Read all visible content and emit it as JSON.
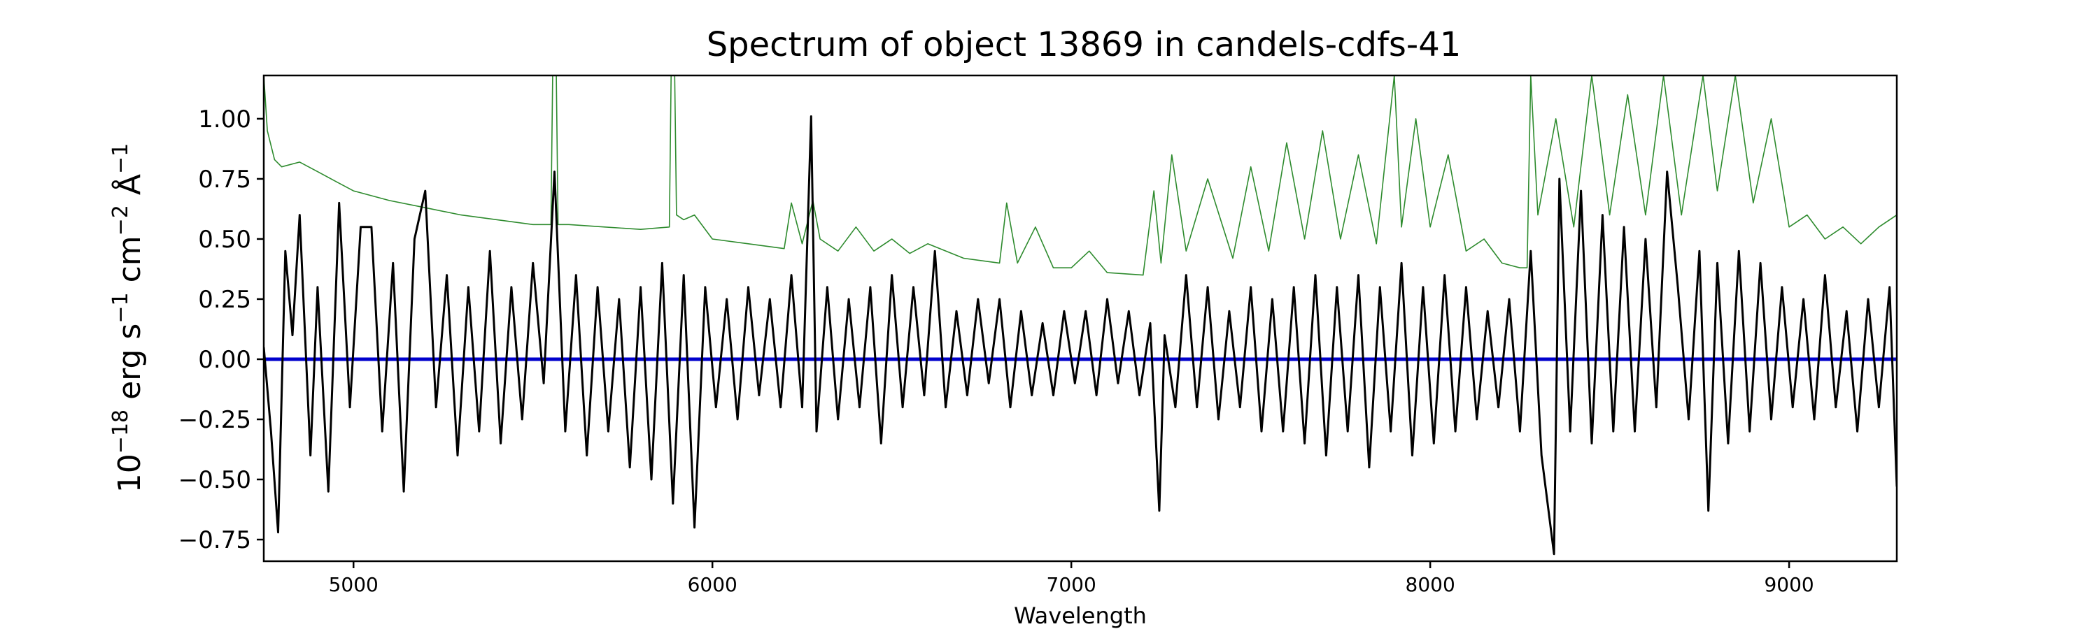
{
  "chart_data": {
    "type": "line",
    "title": "Spectrum of object 13869 in candels-cdfs-41",
    "xlabel": "Wavelength",
    "ylabel": {
      "prefix": "10",
      "exp_prefix": "−18",
      "unit_erg": " erg s",
      "exp_s": "−1",
      "unit_cm": " cm",
      "exp_cm": "−2",
      "unit_ang": " Å",
      "exp_ang": "−1"
    },
    "xlim": [
      4750,
      9300
    ],
    "ylim": [
      -0.84,
      1.18
    ],
    "xticks": [
      5000,
      6000,
      7000,
      8000,
      9000
    ],
    "xtick_labels": [
      "5000",
      "6000",
      "7000",
      "8000",
      "9000"
    ],
    "yticks": [
      -0.75,
      -0.5,
      -0.25,
      0.0,
      0.25,
      0.5,
      0.75,
      1.0
    ],
    "ytick_labels": [
      "−0.75",
      "−0.50",
      "−0.25",
      "0.00",
      "0.25",
      "0.50",
      "0.75",
      "1.00"
    ],
    "series": [
      {
        "role": "error",
        "color": "#2e8b2e",
        "points": [
          [
            4750,
            1.18
          ],
          [
            4760,
            0.95
          ],
          [
            4780,
            0.83
          ],
          [
            4800,
            0.8
          ],
          [
            4850,
            0.82
          ],
          [
            4900,
            0.78
          ],
          [
            4950,
            0.74
          ],
          [
            5000,
            0.7
          ],
          [
            5100,
            0.66
          ],
          [
            5200,
            0.63
          ],
          [
            5300,
            0.6
          ],
          [
            5400,
            0.58
          ],
          [
            5500,
            0.56
          ],
          [
            5550,
            0.56
          ],
          [
            5555,
            1.18
          ],
          [
            5565,
            1.18
          ],
          [
            5570,
            0.56
          ],
          [
            5600,
            0.56
          ],
          [
            5700,
            0.55
          ],
          [
            5800,
            0.54
          ],
          [
            5880,
            0.55
          ],
          [
            5885,
            1.18
          ],
          [
            5895,
            1.18
          ],
          [
            5900,
            0.6
          ],
          [
            5920,
            0.58
          ],
          [
            5950,
            0.6
          ],
          [
            6000,
            0.5
          ],
          [
            6100,
            0.48
          ],
          [
            6200,
            0.46
          ],
          [
            6220,
            0.65
          ],
          [
            6250,
            0.48
          ],
          [
            6280,
            0.66
          ],
          [
            6300,
            0.5
          ],
          [
            6350,
            0.45
          ],
          [
            6400,
            0.55
          ],
          [
            6450,
            0.45
          ],
          [
            6500,
            0.5
          ],
          [
            6550,
            0.44
          ],
          [
            6600,
            0.48
          ],
          [
            6700,
            0.42
          ],
          [
            6800,
            0.4
          ],
          [
            6820,
            0.65
          ],
          [
            6850,
            0.4
          ],
          [
            6900,
            0.55
          ],
          [
            6950,
            0.38
          ],
          [
            7000,
            0.38
          ],
          [
            7050,
            0.45
          ],
          [
            7100,
            0.36
          ],
          [
            7200,
            0.35
          ],
          [
            7230,
            0.7
          ],
          [
            7250,
            0.4
          ],
          [
            7280,
            0.85
          ],
          [
            7320,
            0.45
          ],
          [
            7380,
            0.75
          ],
          [
            7450,
            0.42
          ],
          [
            7500,
            0.8
          ],
          [
            7550,
            0.45
          ],
          [
            7600,
            0.9
          ],
          [
            7650,
            0.5
          ],
          [
            7700,
            0.95
          ],
          [
            7750,
            0.5
          ],
          [
            7800,
            0.85
          ],
          [
            7850,
            0.48
          ],
          [
            7900,
            1.18
          ],
          [
            7920,
            0.55
          ],
          [
            7960,
            1.0
          ],
          [
            8000,
            0.55
          ],
          [
            8050,
            0.85
          ],
          [
            8100,
            0.45
          ],
          [
            8150,
            0.5
          ],
          [
            8200,
            0.4
          ],
          [
            8250,
            0.38
          ],
          [
            8270,
            0.38
          ],
          [
            8280,
            1.18
          ],
          [
            8300,
            0.6
          ],
          [
            8350,
            1.0
          ],
          [
            8400,
            0.55
          ],
          [
            8450,
            1.18
          ],
          [
            8500,
            0.6
          ],
          [
            8550,
            1.1
          ],
          [
            8600,
            0.6
          ],
          [
            8650,
            1.18
          ],
          [
            8700,
            0.6
          ],
          [
            8760,
            1.18
          ],
          [
            8800,
            0.7
          ],
          [
            8850,
            1.18
          ],
          [
            8900,
            0.65
          ],
          [
            8950,
            1.0
          ],
          [
            9000,
            0.55
          ],
          [
            9050,
            0.6
          ],
          [
            9100,
            0.5
          ],
          [
            9150,
            0.55
          ],
          [
            9200,
            0.48
          ],
          [
            9250,
            0.55
          ],
          [
            9300,
            0.6
          ]
        ]
      },
      {
        "role": "continuum",
        "color": "#0000cc",
        "points": [
          [
            4750,
            0.0
          ],
          [
            9300,
            0.0
          ]
        ]
      },
      {
        "role": "flux",
        "color": "#000000",
        "points": [
          [
            4750,
            0.05
          ],
          [
            4770,
            -0.3
          ],
          [
            4790,
            -0.72
          ],
          [
            4810,
            0.45
          ],
          [
            4830,
            0.1
          ],
          [
            4850,
            0.6
          ],
          [
            4880,
            -0.4
          ],
          [
            4900,
            0.3
          ],
          [
            4930,
            -0.55
          ],
          [
            4960,
            0.65
          ],
          [
            4990,
            -0.2
          ],
          [
            5020,
            0.55
          ],
          [
            5050,
            0.55
          ],
          [
            5080,
            -0.3
          ],
          [
            5110,
            0.4
          ],
          [
            5140,
            -0.55
          ],
          [
            5170,
            0.5
          ],
          [
            5200,
            0.7
          ],
          [
            5230,
            -0.2
          ],
          [
            5260,
            0.35
          ],
          [
            5290,
            -0.4
          ],
          [
            5320,
            0.3
          ],
          [
            5350,
            -0.3
          ],
          [
            5380,
            0.45
          ],
          [
            5410,
            -0.35
          ],
          [
            5440,
            0.3
          ],
          [
            5470,
            -0.25
          ],
          [
            5500,
            0.4
          ],
          [
            5530,
            -0.1
          ],
          [
            5560,
            0.78
          ],
          [
            5590,
            -0.3
          ],
          [
            5620,
            0.35
          ],
          [
            5650,
            -0.4
          ],
          [
            5680,
            0.3
          ],
          [
            5710,
            -0.3
          ],
          [
            5740,
            0.25
          ],
          [
            5770,
            -0.45
          ],
          [
            5800,
            0.3
          ],
          [
            5830,
            -0.5
          ],
          [
            5860,
            0.4
          ],
          [
            5890,
            -0.6
          ],
          [
            5920,
            0.35
          ],
          [
            5950,
            -0.7
          ],
          [
            5980,
            0.3
          ],
          [
            6010,
            -0.2
          ],
          [
            6040,
            0.25
          ],
          [
            6070,
            -0.25
          ],
          [
            6100,
            0.3
          ],
          [
            6130,
            -0.15
          ],
          [
            6160,
            0.25
          ],
          [
            6190,
            -0.2
          ],
          [
            6220,
            0.35
          ],
          [
            6250,
            -0.2
          ],
          [
            6275,
            1.01
          ],
          [
            6290,
            -0.3
          ],
          [
            6320,
            0.3
          ],
          [
            6350,
            -0.25
          ],
          [
            6380,
            0.25
          ],
          [
            6410,
            -0.2
          ],
          [
            6440,
            0.3
          ],
          [
            6470,
            -0.35
          ],
          [
            6500,
            0.35
          ],
          [
            6530,
            -0.2
          ],
          [
            6560,
            0.3
          ],
          [
            6590,
            -0.15
          ],
          [
            6620,
            0.45
          ],
          [
            6650,
            -0.2
          ],
          [
            6680,
            0.2
          ],
          [
            6710,
            -0.15
          ],
          [
            6740,
            0.25
          ],
          [
            6770,
            -0.1
          ],
          [
            6800,
            0.25
          ],
          [
            6830,
            -0.2
          ],
          [
            6860,
            0.2
          ],
          [
            6890,
            -0.15
          ],
          [
            6920,
            0.15
          ],
          [
            6950,
            -0.15
          ],
          [
            6980,
            0.2
          ],
          [
            7010,
            -0.1
          ],
          [
            7040,
            0.2
          ],
          [
            7070,
            -0.15
          ],
          [
            7100,
            0.25
          ],
          [
            7130,
            -0.1
          ],
          [
            7160,
            0.2
          ],
          [
            7190,
            -0.15
          ],
          [
            7220,
            0.15
          ],
          [
            7245,
            -0.63
          ],
          [
            7260,
            0.1
          ],
          [
            7290,
            -0.2
          ],
          [
            7320,
            0.35
          ],
          [
            7350,
            -0.2
          ],
          [
            7380,
            0.3
          ],
          [
            7410,
            -0.25
          ],
          [
            7440,
            0.2
          ],
          [
            7470,
            -0.2
          ],
          [
            7500,
            0.3
          ],
          [
            7530,
            -0.3
          ],
          [
            7560,
            0.25
          ],
          [
            7590,
            -0.3
          ],
          [
            7620,
            0.3
          ],
          [
            7650,
            -0.35
          ],
          [
            7680,
            0.35
          ],
          [
            7710,
            -0.4
          ],
          [
            7740,
            0.3
          ],
          [
            7770,
            -0.3
          ],
          [
            7800,
            0.35
          ],
          [
            7830,
            -0.45
          ],
          [
            7860,
            0.3
          ],
          [
            7890,
            -0.3
          ],
          [
            7920,
            0.4
          ],
          [
            7950,
            -0.4
          ],
          [
            7980,
            0.3
          ],
          [
            8010,
            -0.35
          ],
          [
            8040,
            0.35
          ],
          [
            8070,
            -0.3
          ],
          [
            8100,
            0.3
          ],
          [
            8130,
            -0.25
          ],
          [
            8160,
            0.2
          ],
          [
            8190,
            -0.2
          ],
          [
            8220,
            0.25
          ],
          [
            8250,
            -0.3
          ],
          [
            8280,
            0.45
          ],
          [
            8310,
            -0.4
          ],
          [
            8345,
            -0.81
          ],
          [
            8360,
            0.75
          ],
          [
            8390,
            -0.3
          ],
          [
            8420,
            0.7
          ],
          [
            8450,
            -0.35
          ],
          [
            8480,
            0.6
          ],
          [
            8510,
            -0.3
          ],
          [
            8540,
            0.55
          ],
          [
            8570,
            -0.3
          ],
          [
            8600,
            0.5
          ],
          [
            8630,
            -0.2
          ],
          [
            8660,
            0.78
          ],
          [
            8690,
            0.3
          ],
          [
            8720,
            -0.25
          ],
          [
            8750,
            0.45
          ],
          [
            8775,
            -0.63
          ],
          [
            8800,
            0.4
          ],
          [
            8830,
            -0.35
          ],
          [
            8860,
            0.45
          ],
          [
            8890,
            -0.3
          ],
          [
            8920,
            0.4
          ],
          [
            8950,
            -0.25
          ],
          [
            8980,
            0.3
          ],
          [
            9010,
            -0.2
          ],
          [
            9040,
            0.25
          ],
          [
            9070,
            -0.25
          ],
          [
            9100,
            0.35
          ],
          [
            9130,
            -0.2
          ],
          [
            9160,
            0.2
          ],
          [
            9190,
            -0.3
          ],
          [
            9220,
            0.25
          ],
          [
            9250,
            -0.2
          ],
          [
            9280,
            0.3
          ],
          [
            9300,
            -0.53
          ]
        ]
      }
    ]
  }
}
